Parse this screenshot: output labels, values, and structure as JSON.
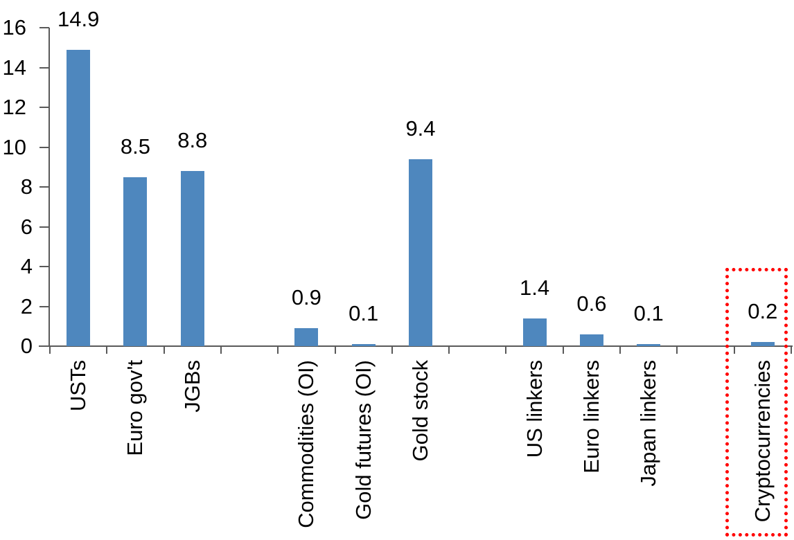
{
  "chart_data": {
    "type": "bar",
    "title": "",
    "xlabel": "",
    "ylabel": "",
    "categories": [
      "USTs",
      "Euro gov't",
      "JGBs",
      "Commodities (OI)",
      "Gold futures (OI)",
      "Gold stock",
      "US linkers",
      "Euro linkers",
      "Japan linkers",
      "Cryptocurrencies"
    ],
    "values": [
      14.9,
      8.5,
      8.8,
      0.9,
      0.1,
      9.4,
      1.4,
      0.6,
      0.1,
      0.2
    ],
    "data_labels": [
      "14.9",
      "8.5",
      "8.8",
      "0.9",
      "0.1",
      "9.4",
      "1.4",
      "0.6",
      "0.1",
      "0.2"
    ],
    "slot_indices": [
      0,
      1,
      2,
      4,
      5,
      6,
      8,
      9,
      10,
      12
    ],
    "total_slots": 13,
    "ylim": [
      0,
      16
    ],
    "yticks": [
      0,
      2,
      4,
      6,
      8,
      10,
      12,
      14,
      16
    ],
    "ytick_labels": [
      "0",
      "2",
      "4",
      "6",
      "8",
      "10",
      "12",
      "14",
      "16"
    ],
    "grid": false,
    "legend": "none",
    "bar_color": "#4E87BE",
    "axis_color": "#595959",
    "text_color": "#000000",
    "highlight": {
      "category": "Cryptocurrencies",
      "shape": "dotted-rectangle",
      "color": "#FF0000"
    }
  }
}
